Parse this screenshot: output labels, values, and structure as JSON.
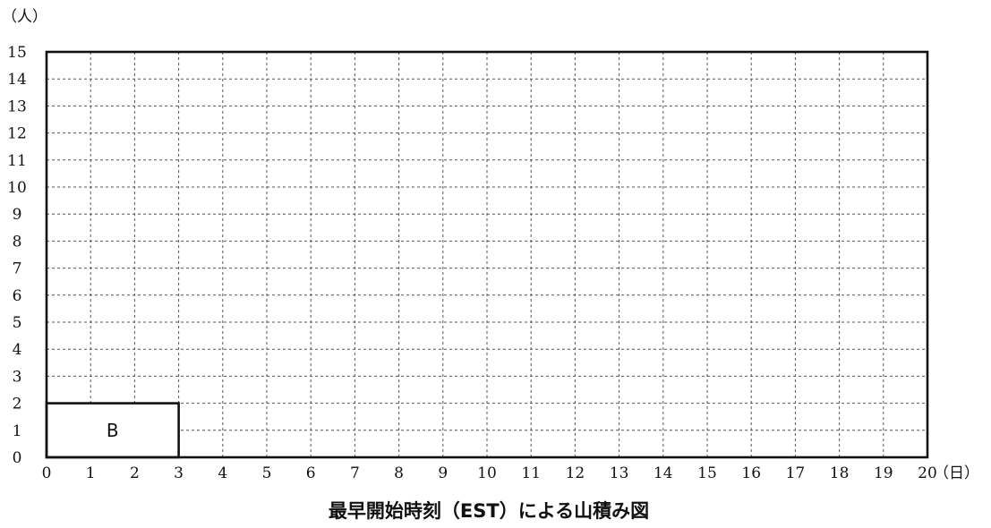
{
  "chart_data": {
    "type": "bar",
    "title": "最早開始時刻（EST）による山積み図",
    "ylabel": "（人）",
    "xlabel": "（日）",
    "xlim": [
      0,
      20
    ],
    "ylim": [
      0,
      15
    ],
    "x_ticks": [
      "0",
      "1",
      "2",
      "3",
      "4",
      "5",
      "6",
      "7",
      "8",
      "9",
      "10",
      "11",
      "12",
      "13",
      "14",
      "15",
      "16",
      "17",
      "18",
      "19",
      "20"
    ],
    "y_ticks": [
      "0",
      "1",
      "2",
      "3",
      "4",
      "5",
      "6",
      "7",
      "8",
      "9",
      "10",
      "11",
      "12",
      "13",
      "14",
      "15"
    ],
    "grid": true,
    "blocks": [
      {
        "label": "B",
        "x_start": 0,
        "x_end": 3,
        "y_start": 0,
        "y_end": 2
      }
    ]
  }
}
